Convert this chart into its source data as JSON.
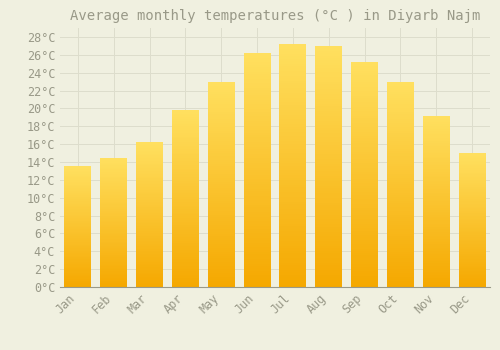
{
  "title": "Average monthly temperatures (°C ) in Diyarb Najm",
  "months": [
    "Jan",
    "Feb",
    "Mar",
    "Apr",
    "May",
    "Jun",
    "Jul",
    "Aug",
    "Sep",
    "Oct",
    "Nov",
    "Dec"
  ],
  "values": [
    13.5,
    14.5,
    16.2,
    19.8,
    23.0,
    26.2,
    27.2,
    27.0,
    25.2,
    23.0,
    19.2,
    15.0
  ],
  "bar_color_bottom": "#F5A800",
  "bar_color_top": "#FFE060",
  "background_color": "#F0F0E0",
  "grid_color": "#DDDDCC",
  "text_color": "#999988",
  "ylim": [
    0,
    29
  ],
  "yticks": [
    0,
    2,
    4,
    6,
    8,
    10,
    12,
    14,
    16,
    18,
    20,
    22,
    24,
    26,
    28
  ],
  "title_fontsize": 10,
  "tick_fontsize": 8.5,
  "font_family": "monospace"
}
